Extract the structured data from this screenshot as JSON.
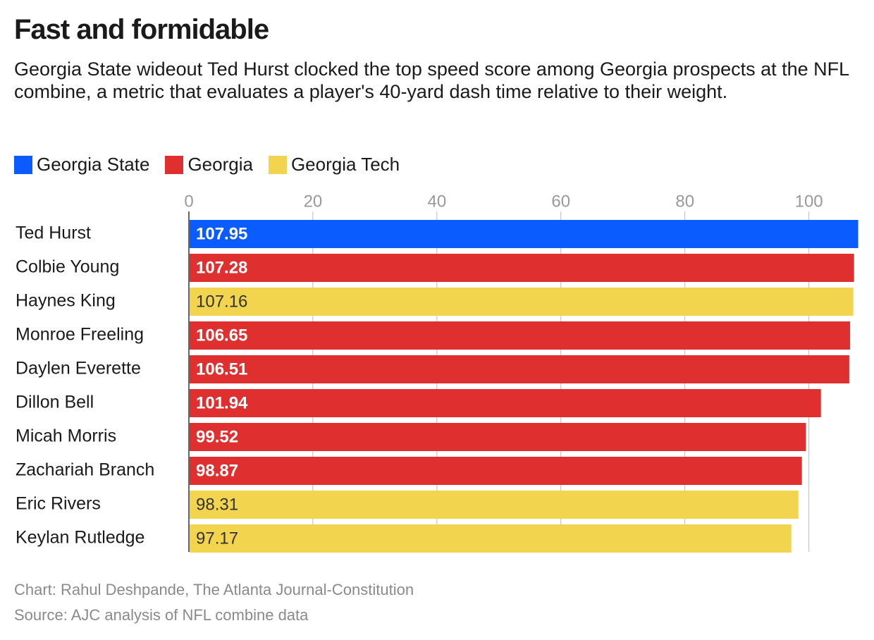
{
  "chart_data": {
    "type": "bar",
    "orientation": "horizontal",
    "title": "Fast and formidable",
    "subtitle": "Georgia State wideout Ted Hurst clocked the top speed score among Georgia prospects at the NFL combine, a metric that evaluates a player's 40-yard dash time relative to their weight.",
    "categories": [
      "Ted Hurst",
      "Colbie Young",
      "Haynes King",
      "Monroe Freeling",
      "Daylen Everette",
      "Dillon Bell",
      "Micah Morris",
      "Zachariah Branch",
      "Eric Rivers",
      "Keylan Rutledge"
    ],
    "series": [
      {
        "name": "Georgia State",
        "color": "#0a5cff",
        "values": [
          107.95,
          null,
          null,
          null,
          null,
          null,
          null,
          null,
          null,
          null
        ]
      },
      {
        "name": "Georgia",
        "color": "#e02f2f",
        "values": [
          null,
          107.28,
          null,
          106.65,
          106.51,
          101.94,
          99.52,
          98.87,
          null,
          null
        ]
      },
      {
        "name": "Georgia Tech",
        "color": "#f3d44f",
        "values": [
          null,
          null,
          107.16,
          null,
          null,
          null,
          null,
          null,
          98.31,
          97.17
        ]
      }
    ],
    "xlim": [
      0,
      108
    ],
    "xticks": [
      0,
      20,
      40,
      60,
      80,
      100
    ],
    "grid": true,
    "credit": "Chart: Rahul Deshpande, The Atlanta Journal-Constitution",
    "source": "Source: AJC analysis of NFL combine data"
  }
}
